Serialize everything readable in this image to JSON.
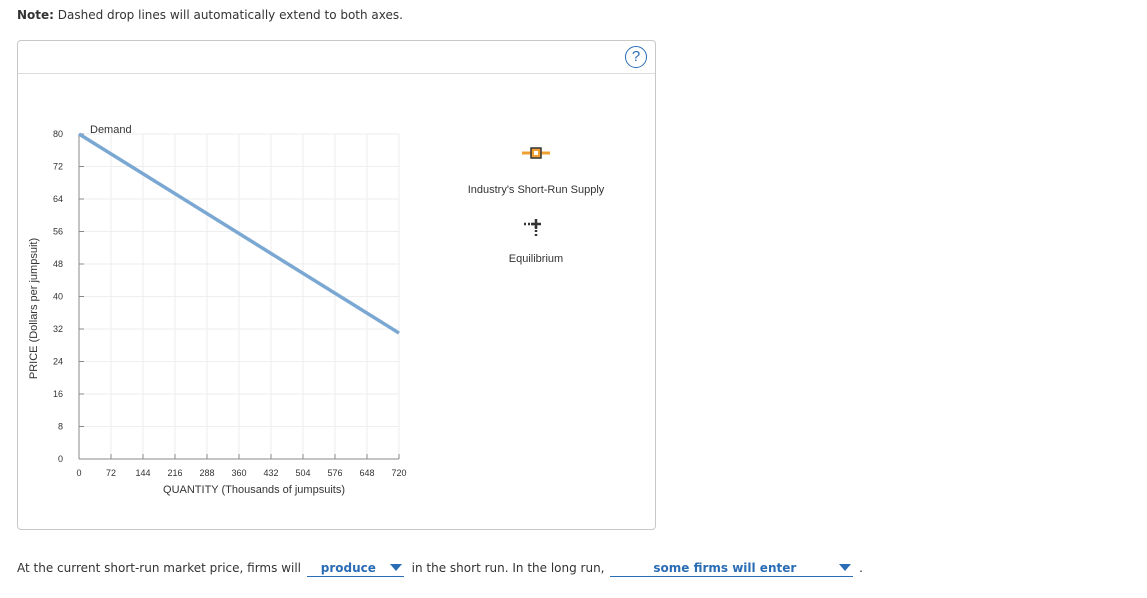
{
  "note": {
    "bold": "Note:",
    "text": " Dashed drop lines will automatically extend to both axes."
  },
  "help": {
    "label": "?"
  },
  "chart_data": {
    "type": "line",
    "xlabel": "QUANTITY (Thousands of jumpsuits)",
    "ylabel": "PRICE (Dollars per jumpsuit)",
    "xlim": [
      0,
      720
    ],
    "ylim": [
      0,
      80
    ],
    "x_ticks": [
      0,
      72,
      144,
      216,
      288,
      360,
      432,
      504,
      576,
      648,
      720
    ],
    "y_ticks": [
      0,
      8,
      16,
      24,
      32,
      40,
      48,
      56,
      64,
      72,
      80
    ],
    "series": [
      {
        "name": "Demand",
        "color": "#7aa8d2",
        "points": [
          [
            0,
            80
          ],
          [
            720,
            31
          ]
        ]
      }
    ],
    "grid": true
  },
  "legend": {
    "supply": {
      "label": "Industry's Short-Run Supply",
      "color": "#f0a030",
      "marker_color": "#333333"
    },
    "equilibrium": {
      "label": "Equilibrium",
      "color": "#333333"
    }
  },
  "question": {
    "part1": "At the current short-run market price, firms will",
    "dropdown1": "produce",
    "part2": "in the short run. In the long run,",
    "dropdown2": "some firms will enter",
    "part3": "."
  }
}
